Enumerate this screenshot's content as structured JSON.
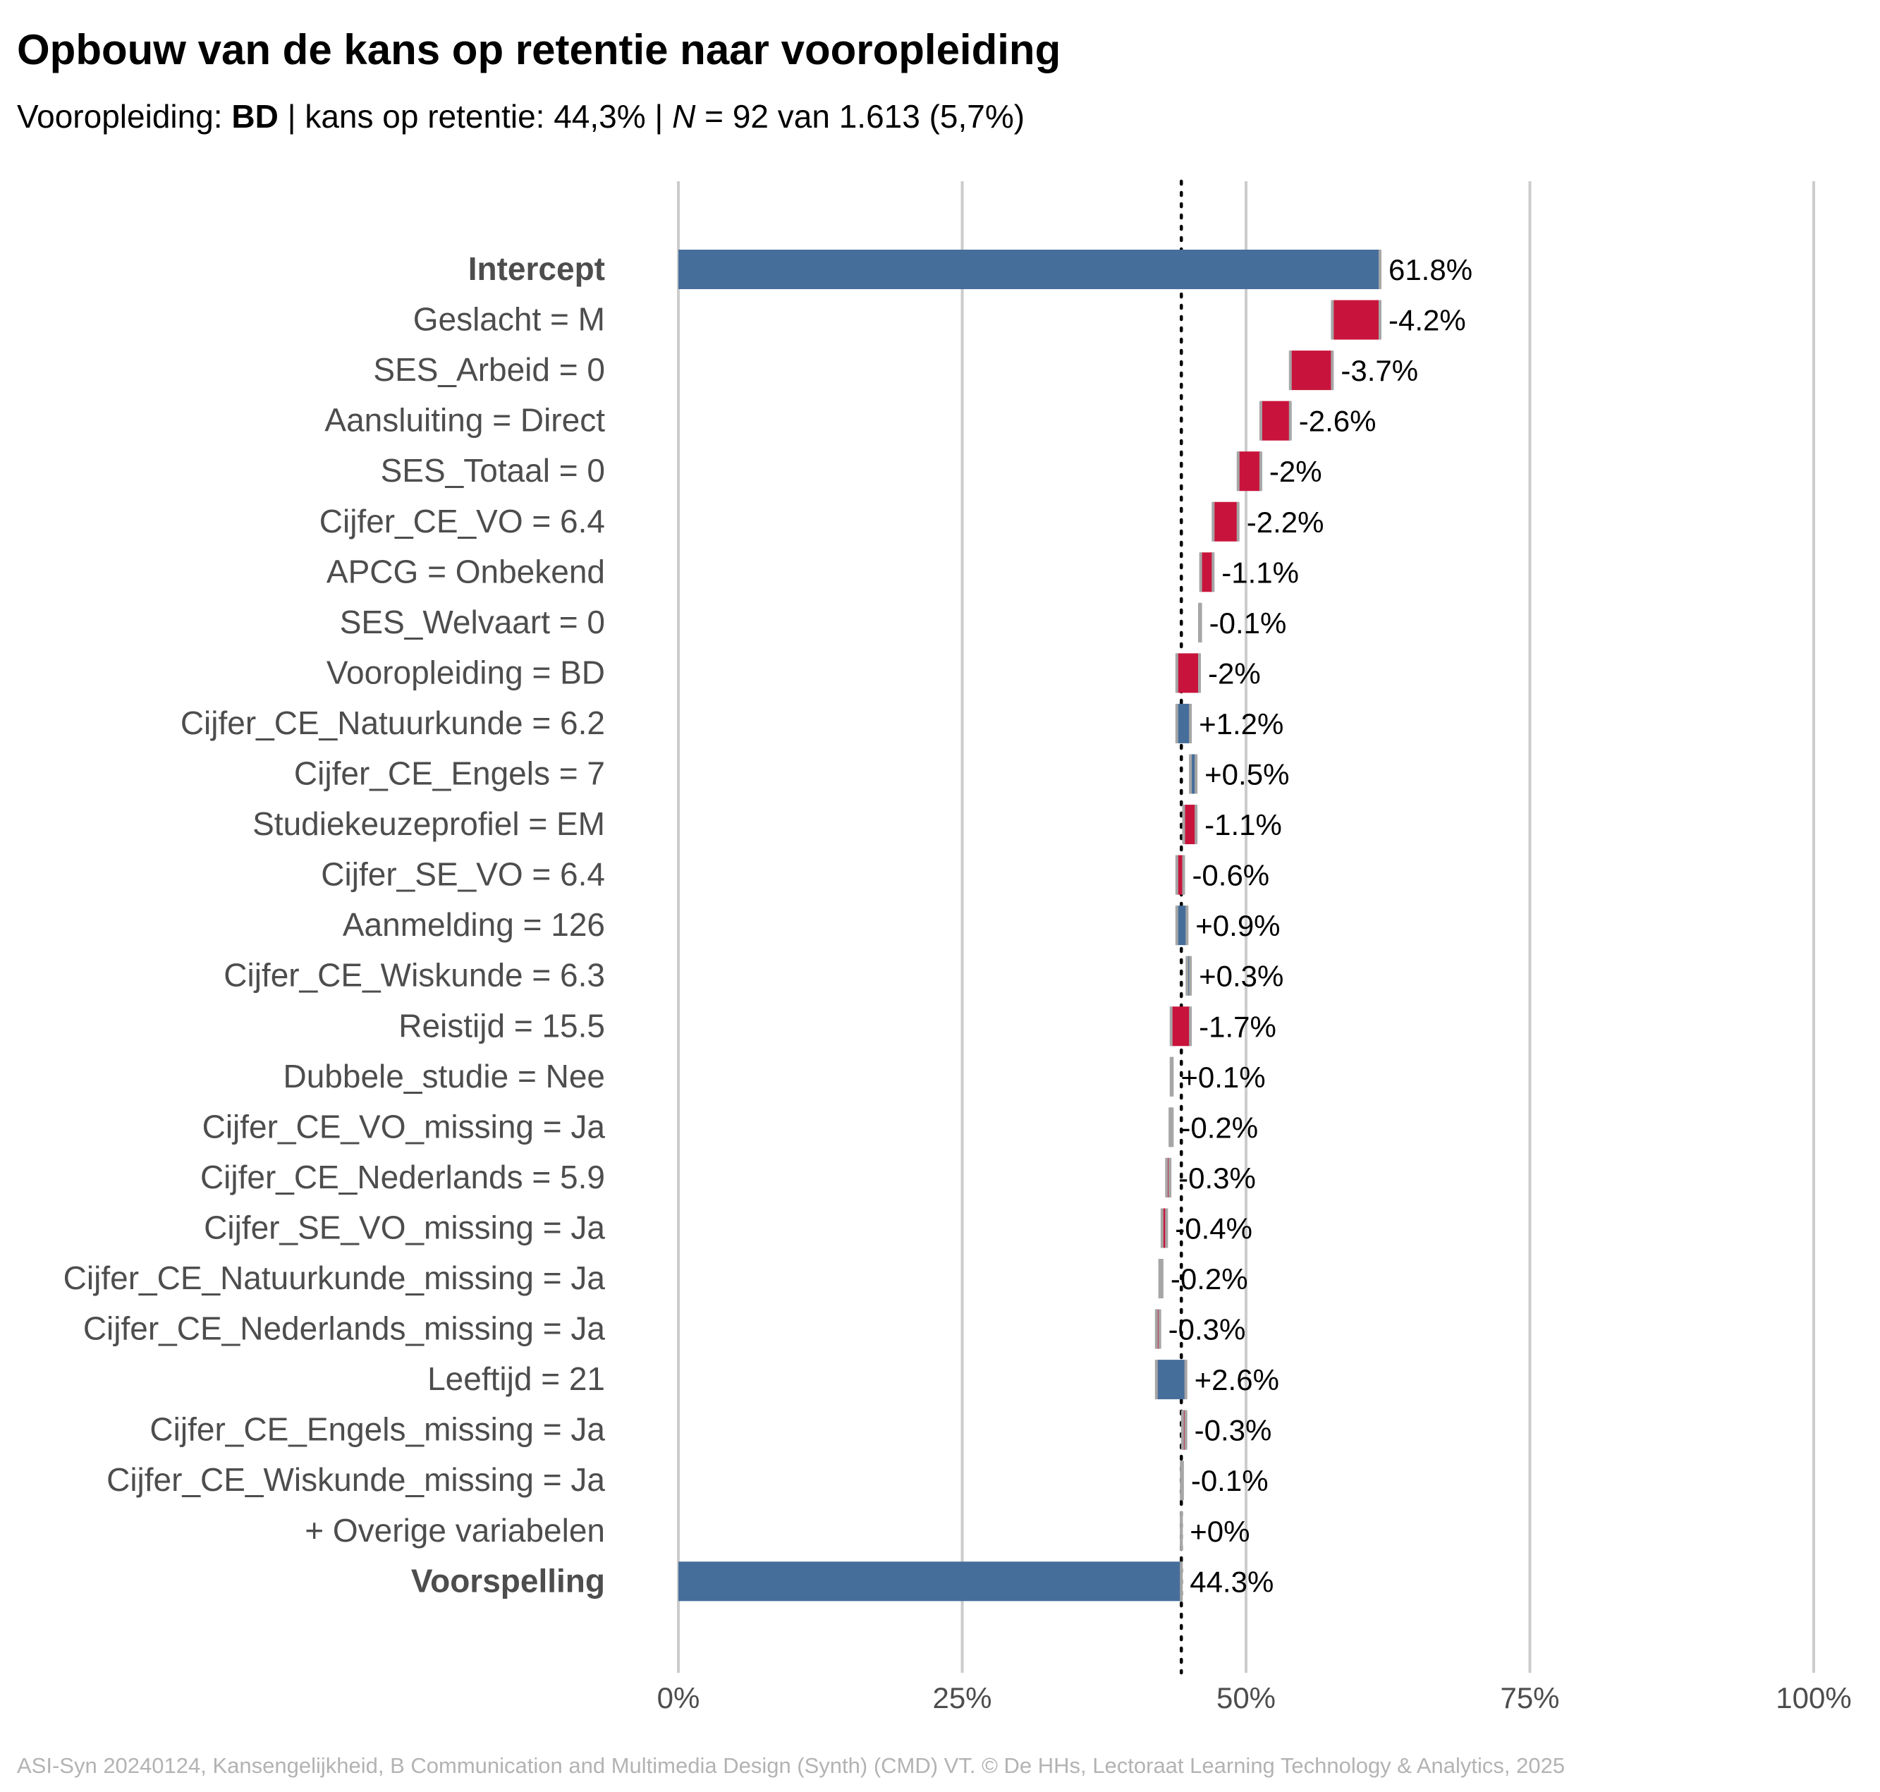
{
  "title": "Opbouw van de kans op retentie naar vooropleiding",
  "subtitle": {
    "prefix": "Vooropleiding: ",
    "group": "BD",
    "mid": " | kans op retentie: 44,3% | ",
    "n_symbol": "N",
    "suffix": " = 92 van 1.613 (5,7%)"
  },
  "caption": "ASI-Syn 20240124, Kansengelijkheid, B Communication and Multimedia Design (Synth) (CMD) VT. © De HHs, Lectoraat Learning Technology & Analytics, 2025",
  "colors": {
    "total": "#466e9b",
    "positive": "#466e9b",
    "negative": "#c8143c",
    "connector": "#a6a6a6",
    "grid": "#cccccc",
    "label": "#4d4d4d",
    "value_label": "#000000"
  },
  "chart_data": {
    "type": "bar",
    "subtype": "waterfall",
    "orientation": "horizontal",
    "x_ticks": [
      "0%",
      "25%",
      "50%",
      "75%",
      "100%"
    ],
    "xlim": [
      0,
      100
    ],
    "reference_line": 44.3,
    "grid": true,
    "rows": [
      {
        "label": "Intercept",
        "start": 0,
        "end": 61.8,
        "text": "61.8%",
        "kind": "total",
        "bold": true
      },
      {
        "label": "Geslacht = M",
        "start": 61.8,
        "end": 57.6,
        "text": "-4.2%",
        "kind": "negative"
      },
      {
        "label": "SES_Arbeid = 0",
        "start": 57.6,
        "end": 53.9,
        "text": "-3.7%",
        "kind": "negative"
      },
      {
        "label": "Aansluiting = Direct",
        "start": 53.9,
        "end": 51.3,
        "text": "-2.6%",
        "kind": "negative"
      },
      {
        "label": "SES_Totaal = 0",
        "start": 51.3,
        "end": 49.3,
        "text": "-2%",
        "kind": "negative"
      },
      {
        "label": "Cijfer_CE_VO = 6.4",
        "start": 49.3,
        "end": 47.1,
        "text": "-2.2%",
        "kind": "negative"
      },
      {
        "label": "APCG = Onbekend",
        "start": 47.1,
        "end": 46.0,
        "text": "-1.1%",
        "kind": "negative"
      },
      {
        "label": "SES_Welvaart = 0",
        "start": 46.0,
        "end": 45.9,
        "text": "-0.1%",
        "kind": "negative"
      },
      {
        "label": "Vooropleiding = BD",
        "start": 45.9,
        "end": 43.9,
        "text": "-2%",
        "kind": "negative"
      },
      {
        "label": "Cijfer_CE_Natuurkunde = 6.2",
        "start": 43.9,
        "end": 45.1,
        "text": "+1.2%",
        "kind": "positive"
      },
      {
        "label": "Cijfer_CE_Engels = 7",
        "start": 45.1,
        "end": 45.6,
        "text": "+0.5%",
        "kind": "positive"
      },
      {
        "label": "Studiekeuzeprofiel = EM",
        "start": 45.6,
        "end": 44.5,
        "text": "-1.1%",
        "kind": "negative"
      },
      {
        "label": "Cijfer_SE_VO = 6.4",
        "start": 44.5,
        "end": 43.9,
        "text": "-0.6%",
        "kind": "negative"
      },
      {
        "label": "Aanmelding = 126",
        "start": 43.9,
        "end": 44.8,
        "text": "+0.9%",
        "kind": "positive"
      },
      {
        "label": "Cijfer_CE_Wiskunde = 6.3",
        "start": 44.8,
        "end": 45.1,
        "text": "+0.3%",
        "kind": "positive"
      },
      {
        "label": "Reistijd = 15.5",
        "start": 45.1,
        "end": 43.4,
        "text": "-1.7%",
        "kind": "negative"
      },
      {
        "label": "Dubbele_studie = Nee",
        "start": 43.4,
        "end": 43.5,
        "text": "+0.1%",
        "kind": "positive"
      },
      {
        "label": "Cijfer_CE_VO_missing = Ja",
        "start": 43.5,
        "end": 43.3,
        "text": "-0.2%",
        "kind": "negative"
      },
      {
        "label": "Cijfer_CE_Nederlands = 5.9",
        "start": 43.3,
        "end": 43.0,
        "text": "-0.3%",
        "kind": "negative"
      },
      {
        "label": "Cijfer_SE_VO_missing = Ja",
        "start": 43.0,
        "end": 42.6,
        "text": "-0.4%",
        "kind": "negative"
      },
      {
        "label": "Cijfer_CE_Natuurkunde_missing = Ja",
        "start": 42.6,
        "end": 42.4,
        "text": "-0.2%",
        "kind": "negative"
      },
      {
        "label": "Cijfer_CE_Nederlands_missing = Ja",
        "start": 42.4,
        "end": 42.1,
        "text": "-0.3%",
        "kind": "negative"
      },
      {
        "label": "Leeftijd = 21",
        "start": 42.1,
        "end": 44.7,
        "text": "+2.6%",
        "kind": "positive"
      },
      {
        "label": "Cijfer_CE_Engels_missing = Ja",
        "start": 44.7,
        "end": 44.4,
        "text": "-0.3%",
        "kind": "negative"
      },
      {
        "label": "Cijfer_CE_Wiskunde_missing = Ja",
        "start": 44.4,
        "end": 44.3,
        "text": "-0.1%",
        "kind": "negative"
      },
      {
        "label": "+ Overige variabelen",
        "start": 44.3,
        "end": 44.3,
        "text": "+0%",
        "kind": "positive"
      },
      {
        "label": "Voorspelling",
        "start": 0,
        "end": 44.3,
        "text": "44.3%",
        "kind": "total",
        "bold": true
      }
    ]
  }
}
